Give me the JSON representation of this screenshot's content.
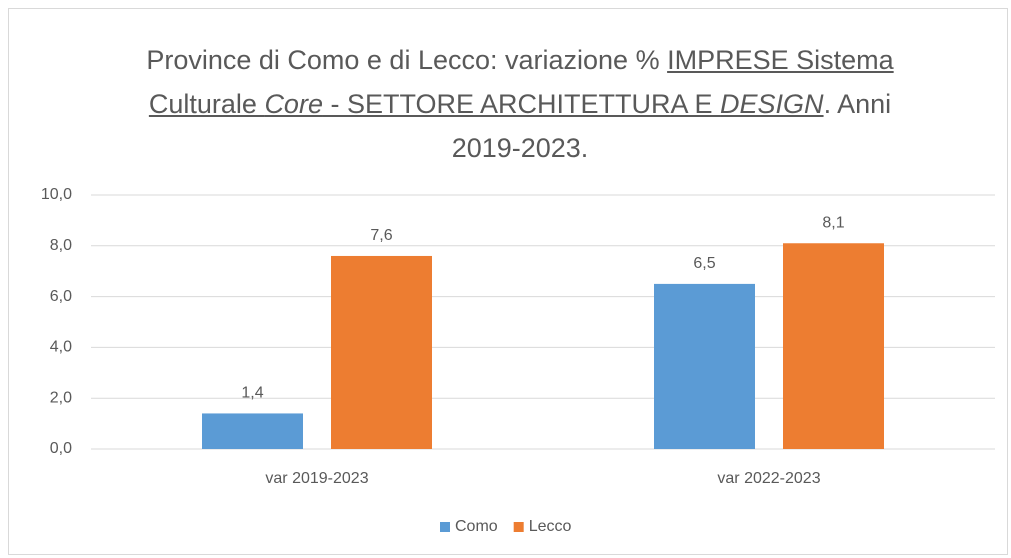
{
  "chart_data": {
    "type": "bar",
    "title": [
      {
        "text": "Province di Como e di Lecco: variazione % "
      },
      {
        "text": "IMPRESE Sistema Culturale ",
        "underline": true
      },
      {
        "text": "Core",
        "underline": true,
        "italic": true
      },
      {
        "text": " - SETTORE ARCHITETTURA E ",
        "underline": true
      },
      {
        "text": "DESIGN",
        "underline": true,
        "italic": true
      },
      {
        "text": ". Anni 2019-2023."
      }
    ],
    "categories": [
      "var 2019-2023",
      "var 2022-2023"
    ],
    "series": [
      {
        "name": "Como",
        "color": "#5b9bd5",
        "values": [
          1.4,
          6.5
        ],
        "value_labels": [
          "1,4",
          "6,5"
        ]
      },
      {
        "name": "Lecco",
        "color": "#ed7d31",
        "values": [
          7.6,
          8.1
        ],
        "value_labels": [
          "7,6",
          "8,1"
        ]
      }
    ],
    "ylim": [
      0,
      10
    ],
    "yticks": [
      {
        "value": 0,
        "label": "0,0"
      },
      {
        "value": 2,
        "label": "2,0"
      },
      {
        "value": 4,
        "label": "4,0"
      },
      {
        "value": 6,
        "label": "6,0"
      },
      {
        "value": 8,
        "label": "8,0"
      },
      {
        "value": 10,
        "label": "10,0"
      }
    ],
    "grid": true,
    "legend": "bottom"
  }
}
